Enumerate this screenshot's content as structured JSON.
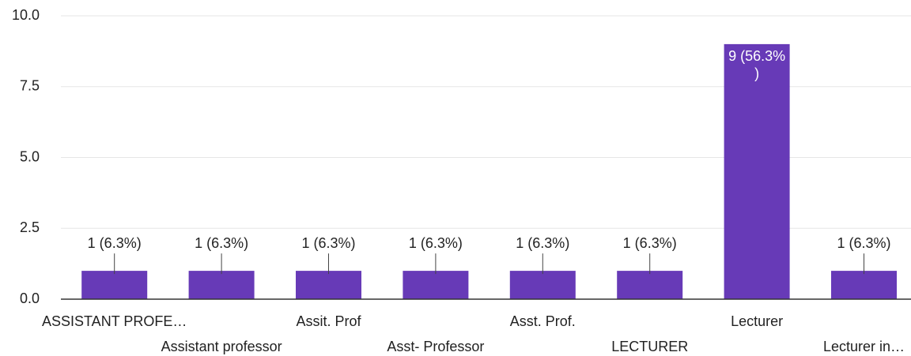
{
  "chart_data": {
    "type": "bar",
    "categories": [
      "ASSISTANT PROFE…",
      "Assistant professor",
      "Assit. Prof",
      "Asst- Professor",
      "Asst. Prof.",
      "LECTURER",
      "Lecturer",
      "Lecturer in…"
    ],
    "values": [
      1,
      1,
      1,
      1,
      1,
      1,
      9,
      1
    ],
    "value_labels": [
      "1 (6.3%)",
      "1 (6.3%)",
      "1 (6.3%)",
      "1 (6.3%)",
      "1 (6.3%)",
      "1 (6.3%)",
      "9 (56.3%)",
      "1 (6.3%)"
    ],
    "color": "#673ab7",
    "ylim": [
      0,
      10
    ],
    "yticks": [
      {
        "value": 0,
        "label": "0.0"
      },
      2.5,
      {
        "value": 5,
        "label": "5.0"
      },
      7.5,
      {
        "value": 10,
        "label": "10.0"
      }
    ],
    "grid": true
  }
}
